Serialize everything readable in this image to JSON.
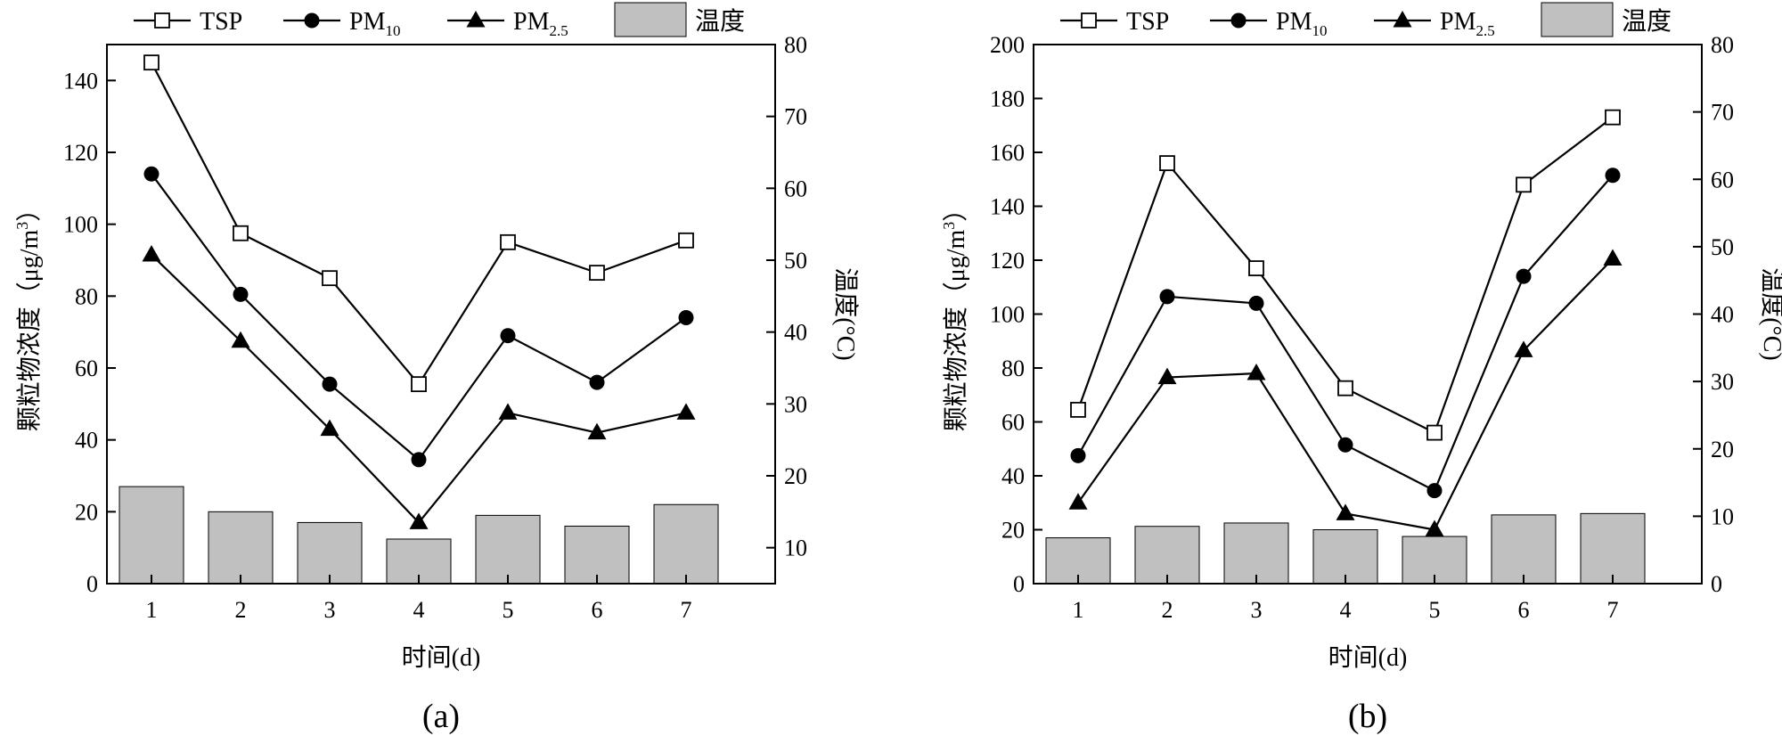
{
  "chart_data": [
    {
      "type": "line+bar",
      "panel_label": "(a)",
      "categories": [
        "1",
        "2",
        "3",
        "4",
        "5",
        "6",
        "7"
      ],
      "series": [
        {
          "name": "TSP",
          "marker": "open-square",
          "values": [
            145,
            97.5,
            85,
            55.5,
            95,
            86.5,
            95.5
          ]
        },
        {
          "name": "PM10",
          "marker": "filled-circle",
          "values": [
            114,
            80.5,
            55.5,
            34.5,
            69,
            56,
            74
          ]
        },
        {
          "name": "PM2.5",
          "marker": "filled-triangle",
          "values": [
            91.5,
            67.5,
            43,
            17,
            47.5,
            42,
            47.5
          ]
        }
      ],
      "bars": {
        "name": "温度",
        "axis": "right",
        "values": [
          18.5,
          15,
          13.5,
          11.2,
          14.5,
          13,
          16
        ]
      },
      "xlabel": "时间(d)",
      "ylabel": "颗粒物浓度（μg/m3）",
      "ylabel_right": "温度(°C)",
      "ylim": [
        0,
        150
      ],
      "yticks": [
        0,
        20,
        40,
        60,
        80,
        100,
        120,
        140
      ],
      "ylim_right": [
        5,
        80
      ],
      "yticks_right": [
        10,
        20,
        30,
        40,
        50,
        60,
        70,
        80
      ]
    },
    {
      "type": "line+bar",
      "panel_label": "(b)",
      "categories": [
        "1",
        "2",
        "3",
        "4",
        "5",
        "6",
        "7"
      ],
      "series": [
        {
          "name": "TSP",
          "marker": "open-square",
          "values": [
            64.5,
            156,
            117,
            72.5,
            56,
            148,
            173
          ]
        },
        {
          "name": "PM10",
          "marker": "filled-circle",
          "values": [
            47.5,
            106.5,
            104,
            51.5,
            34.5,
            114,
            151.5
          ]
        },
        {
          "name": "PM2.5",
          "marker": "filled-triangle",
          "values": [
            30,
            76.5,
            78,
            26,
            20,
            86.5,
            120.5
          ]
        }
      ],
      "bars": {
        "name": "温度",
        "axis": "right",
        "values": [
          6.8,
          8.5,
          9,
          8,
          7,
          10.2,
          10.4
        ]
      },
      "xlabel": "时间(d)",
      "ylabel": "颗粒物浓度（μg/m3）",
      "ylabel_right": "温度(°C)",
      "ylim": [
        0,
        200
      ],
      "yticks": [
        0,
        20,
        40,
        60,
        80,
        100,
        120,
        140,
        160,
        180,
        200
      ],
      "ylim_right": [
        0,
        80
      ],
      "yticks_right": [
        0,
        10,
        20,
        30,
        40,
        50,
        60,
        70,
        80
      ]
    }
  ],
  "legend": {
    "entries": [
      {
        "key": "tsp",
        "main": "TSP",
        "sub": ""
      },
      {
        "key": "pm10",
        "main": "PM",
        "sub": "10"
      },
      {
        "key": "pm25",
        "main": "PM",
        "sub": "2.5"
      },
      {
        "key": "temp",
        "main": "温度",
        "sub": ""
      }
    ]
  },
  "axis_text": {
    "ylabel_main": "颗粒物浓度（μg/m",
    "ylabel_sup": "3",
    "ylabel_close": "）"
  },
  "colors": {
    "bar_fill": "#c0c0c0",
    "bar_stroke": "#000000",
    "line": "#000000",
    "marker": "#000000"
  }
}
